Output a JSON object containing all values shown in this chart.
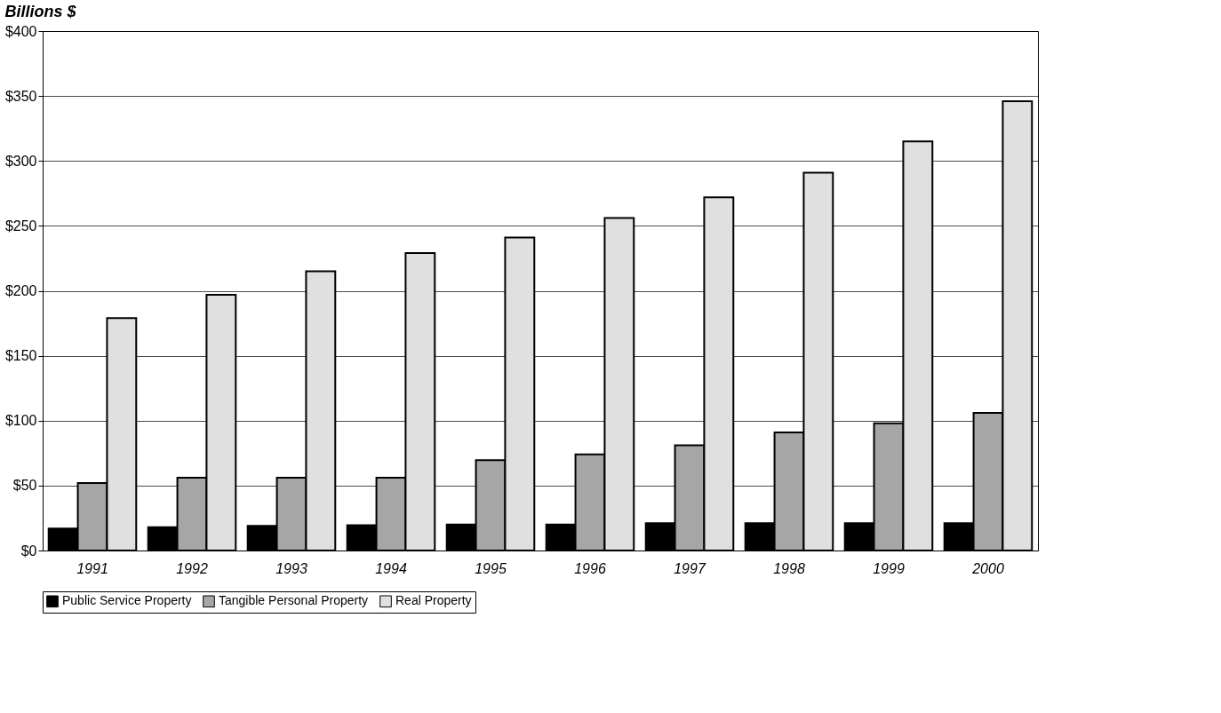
{
  "chart_data": {
    "type": "bar",
    "title": "Billions  $",
    "categories": [
      "1991",
      "1992",
      "1993",
      "1994",
      "1995",
      "1996",
      "1997",
      "1998",
      "1999",
      "2000"
    ],
    "series": [
      {
        "name": "Public Service Property",
        "color": "#000000",
        "values": [
          17,
          18,
          19,
          19.5,
          20,
          20,
          21,
          21,
          21,
          21
        ]
      },
      {
        "name": "Tangible Personal Property",
        "color": "#a6a6a6",
        "values": [
          52,
          56,
          56,
          56,
          69.5,
          74,
          81,
          91,
          98,
          106
        ]
      },
      {
        "name": "Real Property",
        "color": "#e0e0e0",
        "values": [
          179,
          197,
          215,
          229,
          241,
          256,
          272,
          291,
          315,
          346
        ]
      }
    ],
    "ylim": [
      0,
      400
    ],
    "yticks": [
      {
        "value": 0,
        "label": "$0"
      },
      {
        "value": 50,
        "label": "$50"
      },
      {
        "value": 100,
        "label": "$100"
      },
      {
        "value": 150,
        "label": "$150"
      },
      {
        "value": 200,
        "label": "$200"
      },
      {
        "value": 250,
        "label": "$250"
      },
      {
        "value": 300,
        "label": "$300"
      },
      {
        "value": 350,
        "label": "$350"
      },
      {
        "value": 400,
        "label": "$400"
      }
    ],
    "grid": "y",
    "legend": "bottom"
  }
}
